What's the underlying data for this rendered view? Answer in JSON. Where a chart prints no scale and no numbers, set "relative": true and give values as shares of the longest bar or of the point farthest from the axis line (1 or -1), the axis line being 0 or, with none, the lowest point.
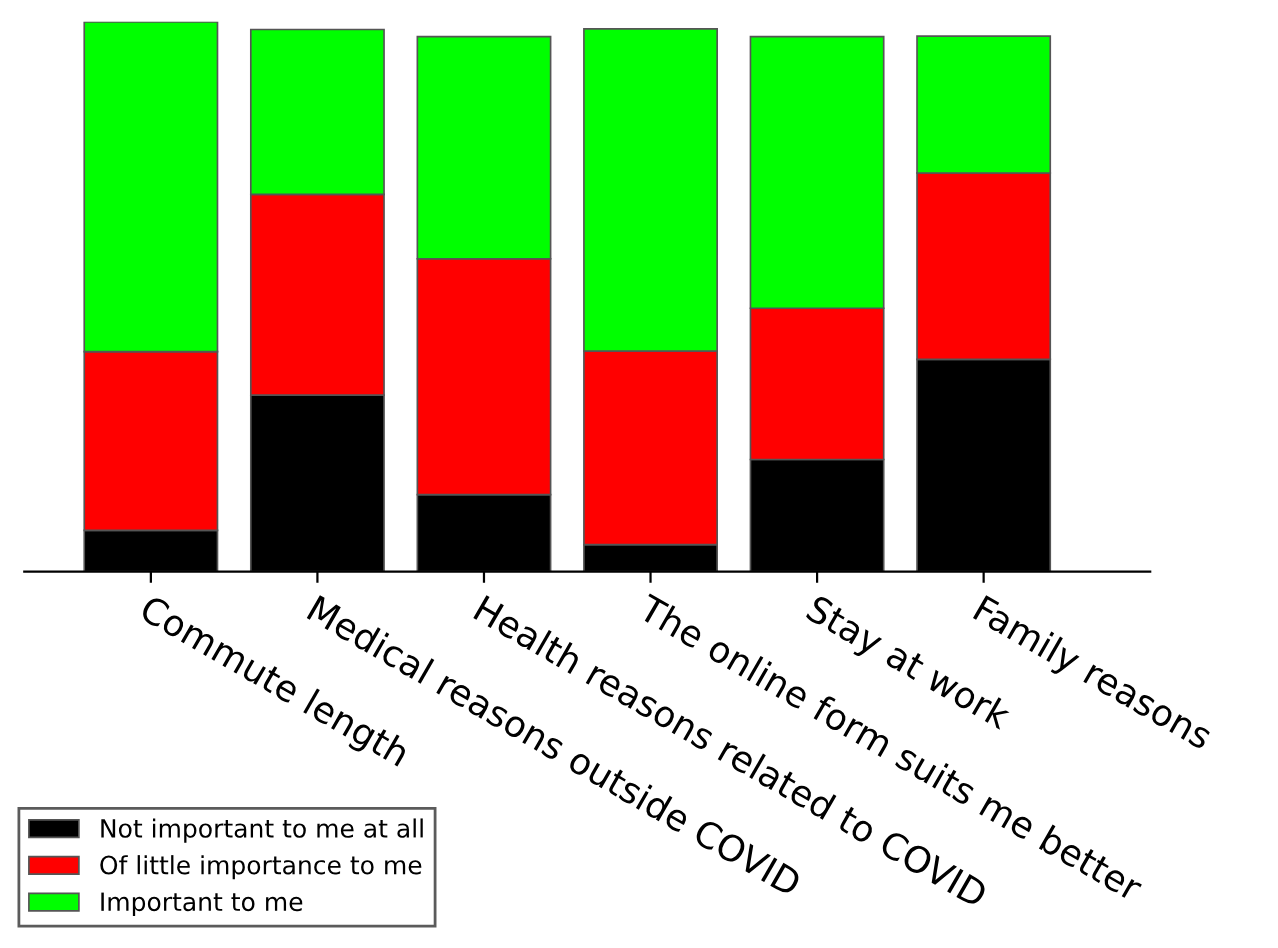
{
  "chart_data": {
    "type": "bar",
    "stacked": true,
    "relative": true,
    "categories": [
      "Commute length",
      "Medical reasons outside COVID",
      "Health reasons related to COVID",
      "The online form suits me better",
      "Stay at work",
      "Family reasons"
    ],
    "series": [
      {
        "name": "Not important to me at all",
        "color": "#000000",
        "values": [
          0.075,
          0.321,
          0.14,
          0.049,
          0.204,
          0.386
        ]
      },
      {
        "name": "Of little importance to me",
        "color": "#ff0000",
        "values": [
          0.325,
          0.365,
          0.429,
          0.352,
          0.275,
          0.339
        ]
      },
      {
        "name": "Important to me",
        "color": "#00ff00",
        "values": [
          0.6,
          0.3,
          0.404,
          0.586,
          0.494,
          0.249
        ]
      }
    ],
    "legend": "bottom left",
    "grid": false
  }
}
